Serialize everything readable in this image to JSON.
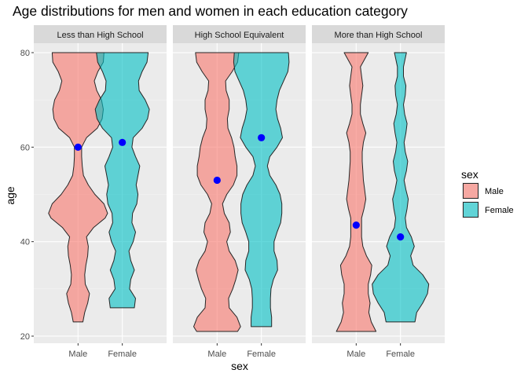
{
  "chart_data": {
    "type": "violin",
    "title": "Age distributions for men and women in each education category",
    "xlabel": "sex",
    "ylabel": "age",
    "ylim": [
      18.5,
      82
    ],
    "yticks": [
      20,
      40,
      60,
      80
    ],
    "categories": [
      "Male",
      "Female"
    ],
    "grid": true,
    "legend": {
      "title": "sex",
      "position": "right",
      "entries": [
        {
          "label": "Male",
          "color": "#F8766D"
        },
        {
          "label": "Female",
          "color": "#00BFC4"
        }
      ]
    },
    "mean_marker_color": "#0000FF",
    "panels": [
      {
        "label": "Less than High School",
        "violins": [
          {
            "sex": "Male",
            "range": [
              23,
              80
            ],
            "mean": 60,
            "density_halfwidth": [
              [
                23,
                0.08
              ],
              [
                25,
                0.11
              ],
              [
                27,
                0.16
              ],
              [
                29,
                0.19
              ],
              [
                31,
                0.12
              ],
              [
                33,
                0.11
              ],
              [
                35,
                0.13
              ],
              [
                37,
                0.16
              ],
              [
                39,
                0.17
              ],
              [
                41,
                0.14
              ],
              [
                43,
                0.26
              ],
              [
                45,
                0.45
              ],
              [
                46,
                0.49
              ],
              [
                48,
                0.43
              ],
              [
                50,
                0.28
              ],
              [
                52,
                0.17
              ],
              [
                54,
                0.09
              ],
              [
                56,
                0.07
              ],
              [
                58,
                0.06
              ],
              [
                60,
                0.06
              ],
              [
                62,
                0.14
              ],
              [
                64,
                0.32
              ],
              [
                66,
                0.4
              ],
              [
                68,
                0.42
              ],
              [
                70,
                0.39
              ],
              [
                72,
                0.31
              ],
              [
                74,
                0.27
              ],
              [
                76,
                0.33
              ],
              [
                78,
                0.42
              ],
              [
                80,
                0.43
              ]
            ]
          },
          {
            "sex": "Female",
            "range": [
              26,
              80
            ],
            "mean": 61,
            "density_halfwidth": [
              [
                26,
                0.2
              ],
              [
                28,
                0.22
              ],
              [
                30,
                0.12
              ],
              [
                32,
                0.14
              ],
              [
                34,
                0.2
              ],
              [
                36,
                0.14
              ],
              [
                38,
                0.11
              ],
              [
                40,
                0.18
              ],
              [
                42,
                0.22
              ],
              [
                44,
                0.16
              ],
              [
                46,
                0.17
              ],
              [
                48,
                0.24
              ],
              [
                50,
                0.26
              ],
              [
                52,
                0.23
              ],
              [
                54,
                0.26
              ],
              [
                56,
                0.29
              ],
              [
                58,
                0.22
              ],
              [
                60,
                0.16
              ],
              [
                62,
                0.18
              ],
              [
                64,
                0.33
              ],
              [
                66,
                0.42
              ],
              [
                68,
                0.45
              ],
              [
                70,
                0.38
              ],
              [
                72,
                0.28
              ],
              [
                74,
                0.27
              ],
              [
                76,
                0.33
              ],
              [
                78,
                0.41
              ],
              [
                80,
                0.43
              ]
            ]
          }
        ]
      },
      {
        "label": "High School Equivalent",
        "violins": [
          {
            "sex": "Male",
            "range": [
              21,
              80
            ],
            "mean": 53,
            "density_halfwidth": [
              [
                21,
                0.34
              ],
              [
                22,
                0.39
              ],
              [
                24,
                0.33
              ],
              [
                26,
                0.2
              ],
              [
                28,
                0.19
              ],
              [
                30,
                0.26
              ],
              [
                32,
                0.31
              ],
              [
                34,
                0.35
              ],
              [
                36,
                0.3
              ],
              [
                38,
                0.2
              ],
              [
                40,
                0.16
              ],
              [
                42,
                0.22
              ],
              [
                44,
                0.2
              ],
              [
                46,
                0.12
              ],
              [
                48,
                0.09
              ],
              [
                50,
                0.16
              ],
              [
                52,
                0.27
              ],
              [
                54,
                0.33
              ],
              [
                56,
                0.33
              ],
              [
                58,
                0.3
              ],
              [
                60,
                0.28
              ],
              [
                62,
                0.24
              ],
              [
                64,
                0.18
              ],
              [
                66,
                0.17
              ],
              [
                68,
                0.2
              ],
              [
                70,
                0.2
              ],
              [
                72,
                0.15
              ],
              [
                74,
                0.14
              ],
              [
                76,
                0.25
              ],
              [
                78,
                0.34
              ],
              [
                80,
                0.36
              ]
            ]
          },
          {
            "sex": "Female",
            "range": [
              22,
              80
            ],
            "mean": 62,
            "density_halfwidth": [
              [
                22,
                0.17
              ],
              [
                24,
                0.17
              ],
              [
                26,
                0.15
              ],
              [
                28,
                0.15
              ],
              [
                30,
                0.16
              ],
              [
                32,
                0.2
              ],
              [
                34,
                0.27
              ],
              [
                36,
                0.26
              ],
              [
                38,
                0.21
              ],
              [
                40,
                0.21
              ],
              [
                42,
                0.26
              ],
              [
                44,
                0.32
              ],
              [
                46,
                0.34
              ],
              [
                48,
                0.34
              ],
              [
                50,
                0.31
              ],
              [
                52,
                0.24
              ],
              [
                54,
                0.14
              ],
              [
                56,
                0.1
              ],
              [
                58,
                0.14
              ],
              [
                60,
                0.26
              ],
              [
                62,
                0.35
              ],
              [
                64,
                0.32
              ],
              [
                66,
                0.27
              ],
              [
                68,
                0.24
              ],
              [
                70,
                0.26
              ],
              [
                72,
                0.3
              ],
              [
                74,
                0.37
              ],
              [
                76,
                0.44
              ],
              [
                78,
                0.46
              ],
              [
                80,
                0.45
              ]
            ]
          }
        ]
      },
      {
        "label": "More than High School",
        "violins": [
          {
            "sex": "Male",
            "range": [
              21,
              80
            ],
            "mean": 43.5,
            "density_halfwidth": [
              [
                21,
                0.33
              ],
              [
                23,
                0.25
              ],
              [
                25,
                0.21
              ],
              [
                27,
                0.23
              ],
              [
                29,
                0.2
              ],
              [
                31,
                0.2
              ],
              [
                33,
                0.24
              ],
              [
                35,
                0.26
              ],
              [
                37,
                0.17
              ],
              [
                39,
                0.11
              ],
              [
                41,
                0.09
              ],
              [
                43,
                0.09
              ],
              [
                45,
                0.09
              ],
              [
                47,
                0.13
              ],
              [
                49,
                0.16
              ],
              [
                51,
                0.14
              ],
              [
                53,
                0.12
              ],
              [
                55,
                0.11
              ],
              [
                57,
                0.1
              ],
              [
                59,
                0.1
              ],
              [
                61,
                0.12
              ],
              [
                63,
                0.16
              ],
              [
                65,
                0.11
              ],
              [
                67,
                0.07
              ],
              [
                69,
                0.07
              ],
              [
                71,
                0.09
              ],
              [
                73,
                0.11
              ],
              [
                75,
                0.09
              ],
              [
                77,
                0.07
              ],
              [
                80,
                0.2
              ]
            ]
          },
          {
            "sex": "Female",
            "range": [
              23,
              80
            ],
            "mean": 41,
            "density_halfwidth": [
              [
                23,
                0.24
              ],
              [
                25,
                0.27
              ],
              [
                27,
                0.37
              ],
              [
                29,
                0.45
              ],
              [
                31,
                0.47
              ],
              [
                33,
                0.37
              ],
              [
                35,
                0.21
              ],
              [
                37,
                0.17
              ],
              [
                39,
                0.23
              ],
              [
                41,
                0.18
              ],
              [
                43,
                0.1
              ],
              [
                45,
                0.08
              ],
              [
                47,
                0.11
              ],
              [
                49,
                0.13
              ],
              [
                51,
                0.09
              ],
              [
                53,
                0.06
              ],
              [
                55,
                0.1
              ],
              [
                57,
                0.12
              ],
              [
                59,
                0.08
              ],
              [
                61,
                0.06
              ],
              [
                63,
                0.09
              ],
              [
                65,
                0.11
              ],
              [
                67,
                0.07
              ],
              [
                69,
                0.05
              ],
              [
                71,
                0.08
              ],
              [
                73,
                0.09
              ],
              [
                75,
                0.05
              ],
              [
                77,
                0.05
              ],
              [
                80,
                0.1
              ]
            ]
          }
        ]
      }
    ]
  }
}
